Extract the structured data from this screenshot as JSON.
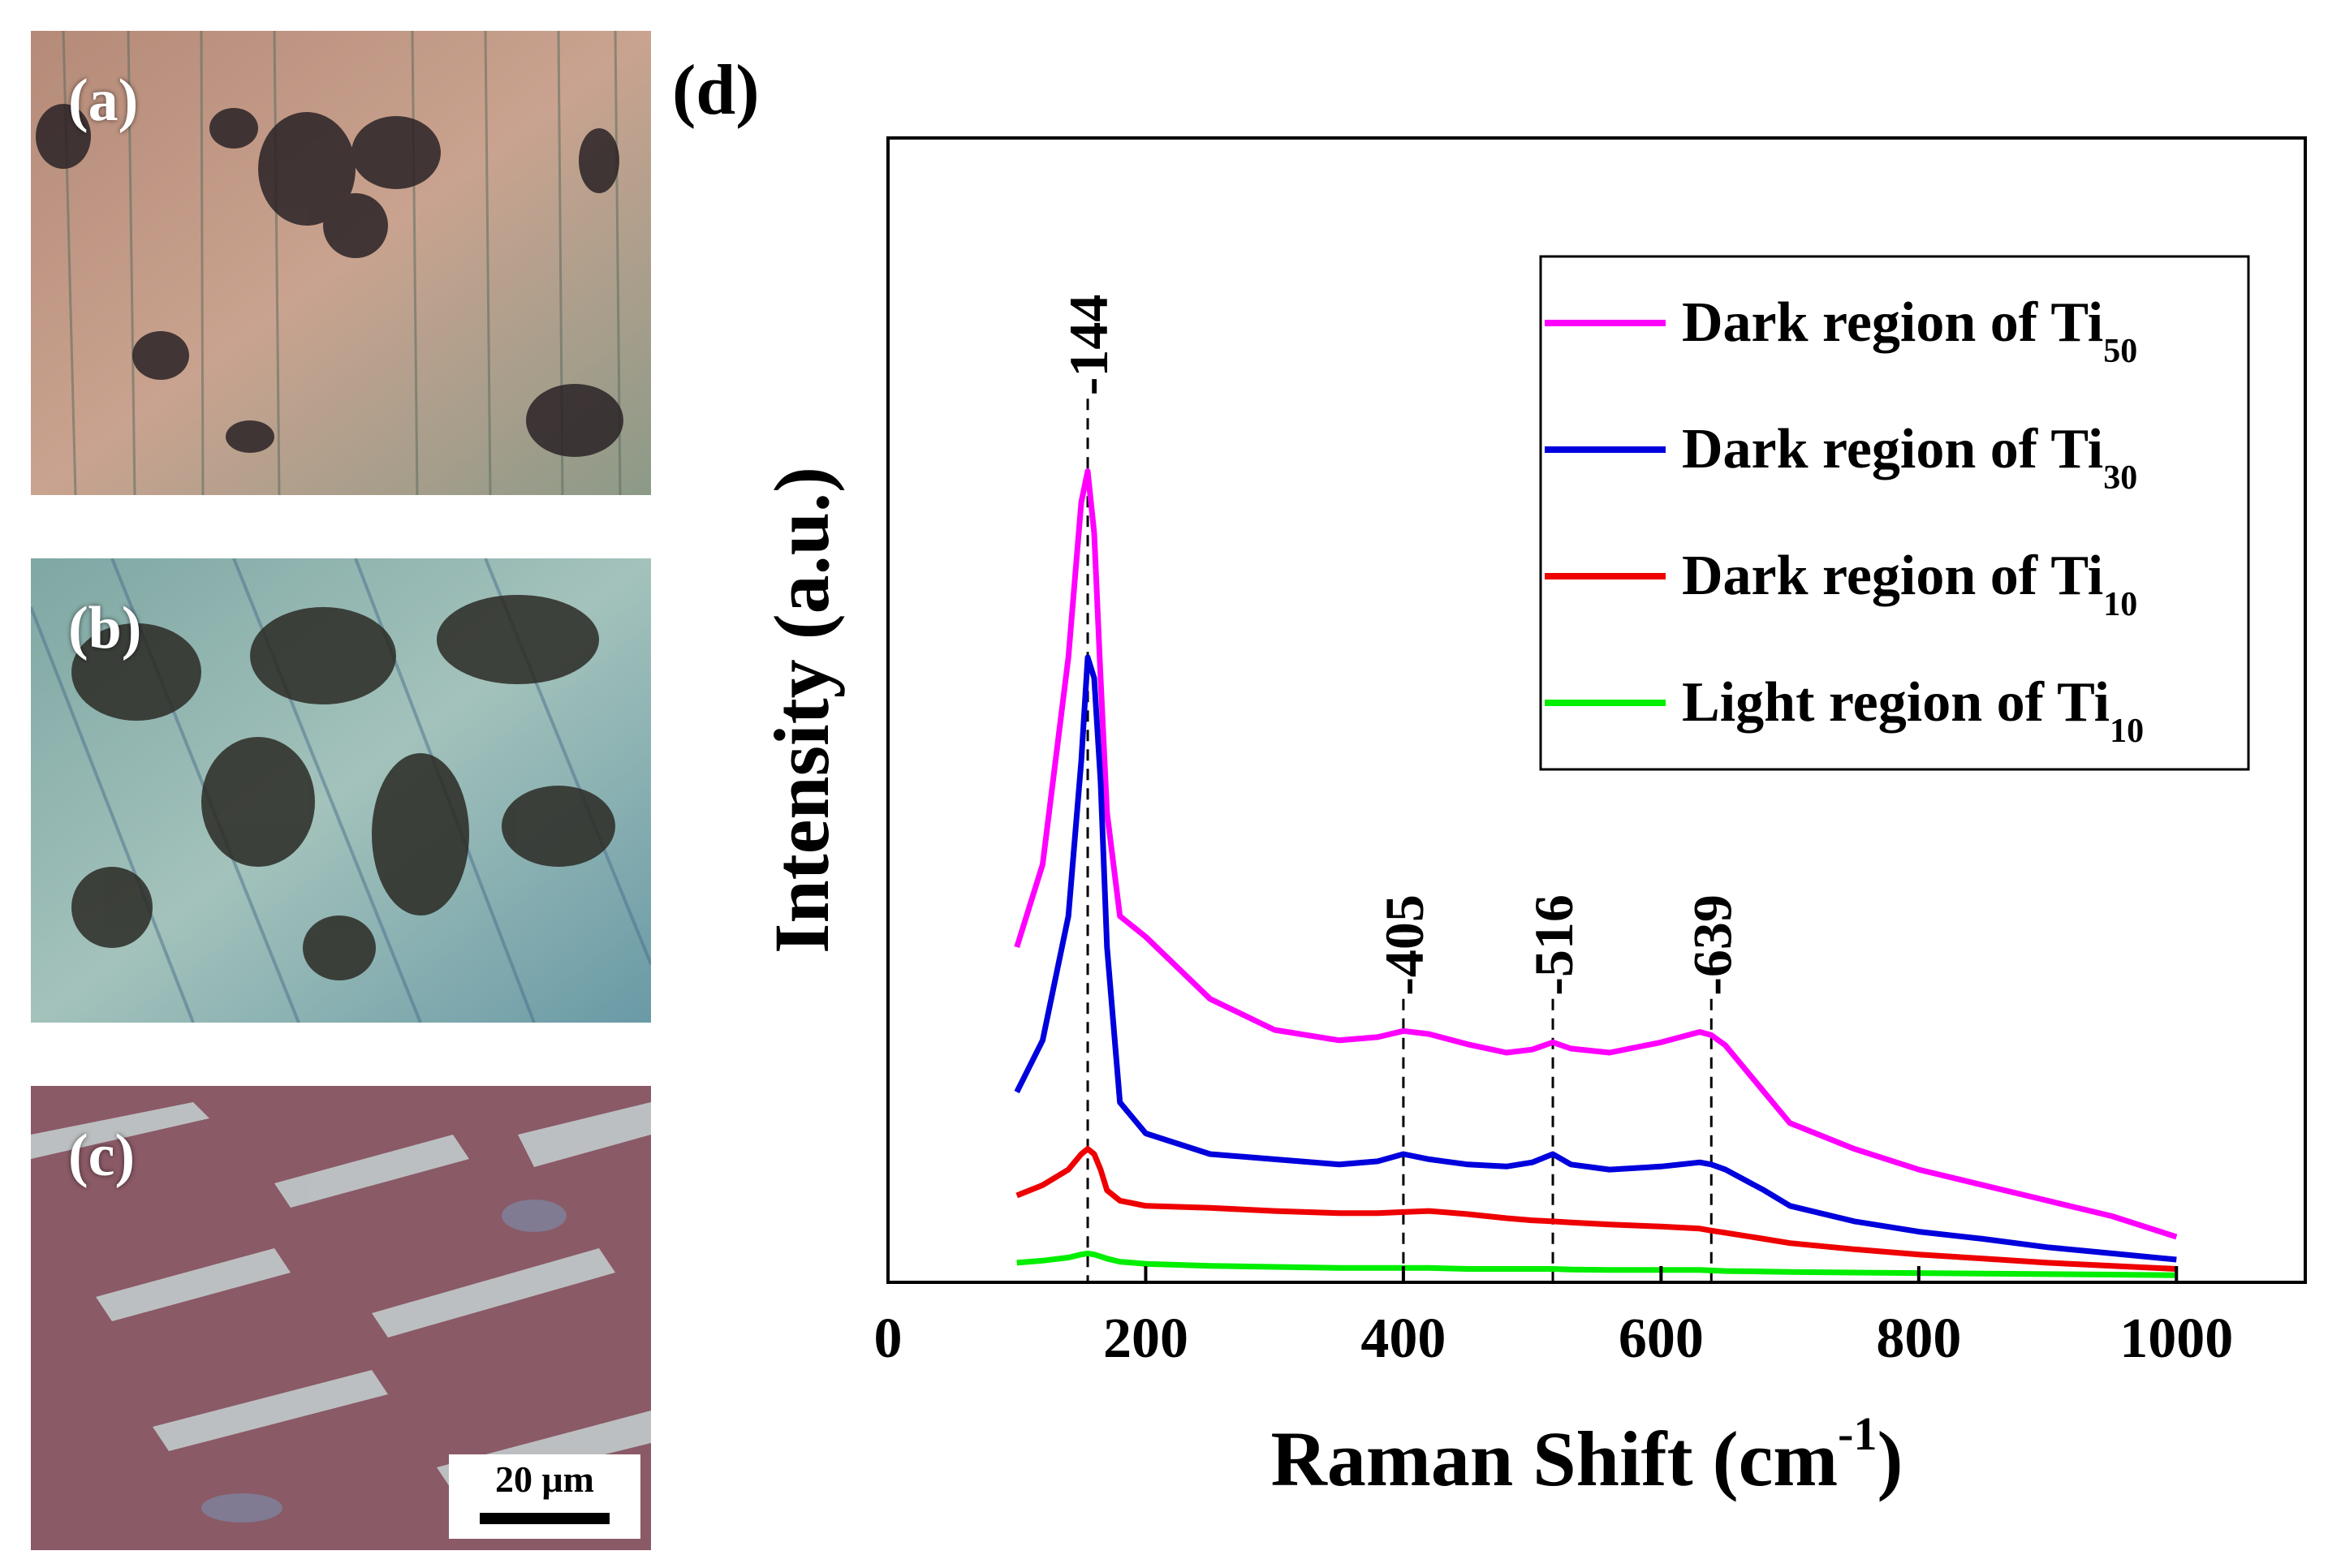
{
  "panels": {
    "a": {
      "label": "(a)"
    },
    "b": {
      "label": "(b)"
    },
    "c": {
      "label": "(c)",
      "scale_bar": "20 μm"
    },
    "d": {
      "label": "(d)"
    }
  },
  "chart_data": {
    "type": "line",
    "title": "",
    "xlabel": "Raman Shift (cm",
    "xlabel_superscript": "-1",
    "xlabel_close": ")",
    "ylabel": "Intensity (a.u.)",
    "xlim": [
      0,
      1100
    ],
    "ylim": [
      0,
      100
    ],
    "x_ticks": [
      0,
      200,
      400,
      600,
      800,
      1000
    ],
    "x_tick_labels": [
      "0",
      "200",
      "400",
      "600",
      "800",
      "1000"
    ],
    "grid": false,
    "legend_position": "top-right",
    "x": [
      100,
      120,
      140,
      150,
      155,
      160,
      165,
      170,
      180,
      200,
      250,
      300,
      350,
      380,
      400,
      420,
      450,
      480,
      500,
      516,
      530,
      560,
      600,
      630,
      639,
      650,
      680,
      700,
      750,
      800,
      850,
      900,
      950,
      1000
    ],
    "series": [
      {
        "name": "Dark region of Ti",
        "subscript": "50",
        "color": "#ff00ff",
        "values": [
          32,
          40,
          60,
          75,
          78,
          72,
          58,
          45,
          35,
          33,
          27,
          24,
          23,
          23.3,
          23.9,
          23.6,
          22.6,
          21.8,
          22.1,
          22.8,
          22.2,
          21.8,
          22.8,
          23.8,
          23.5,
          22.5,
          18,
          15,
          12.5,
          10.5,
          9,
          7.5,
          6,
          4
        ]
      },
      {
        "name": "Dark region of Ti",
        "subscript": "30",
        "color": "#0000dd",
        "values": [
          18,
          23,
          35,
          50,
          60,
          58,
          48,
          32,
          17,
          14,
          12,
          11.5,
          11,
          11.3,
          12,
          11.5,
          11,
          10.8,
          11.2,
          12,
          11,
          10.5,
          10.8,
          11.2,
          11,
          10.5,
          8.5,
          7,
          5.5,
          4.5,
          3.8,
          3,
          2.4,
          1.8
        ]
      },
      {
        "name": "Dark region of Ti",
        "subscript": "10",
        "color": "#ee0000",
        "values": [
          8,
          9,
          10.5,
          12,
          12.5,
          12,
          10.5,
          8.5,
          7.5,
          7,
          6.8,
          6.5,
          6.3,
          6.3,
          6.4,
          6.5,
          6.2,
          5.8,
          5.6,
          5.5,
          5.4,
          5.2,
          5,
          4.8,
          4.6,
          4.4,
          3.8,
          3.4,
          2.8,
          2.3,
          1.9,
          1.5,
          1.2,
          0.9
        ]
      },
      {
        "name": "Light region of Ti",
        "subscript": "10",
        "color": "#00ee00",
        "values": [
          1.5,
          1.7,
          2,
          2.3,
          2.4,
          2.3,
          2.1,
          1.9,
          1.6,
          1.4,
          1.2,
          1.1,
          1,
          1,
          1,
          1,
          0.9,
          0.9,
          0.9,
          0.9,
          0.85,
          0.8,
          0.8,
          0.8,
          0.75,
          0.7,
          0.65,
          0.6,
          0.55,
          0.5,
          0.45,
          0.4,
          0.35,
          0.3
        ]
      }
    ],
    "annotations": [
      {
        "text": "-144",
        "x": 155,
        "y_top": 85
      },
      {
        "text": "-405",
        "x": 400,
        "y_top": 27
      },
      {
        "text": "-516",
        "x": 516,
        "y_top": 27
      },
      {
        "text": "-639",
        "x": 639,
        "y_top": 27
      }
    ]
  }
}
